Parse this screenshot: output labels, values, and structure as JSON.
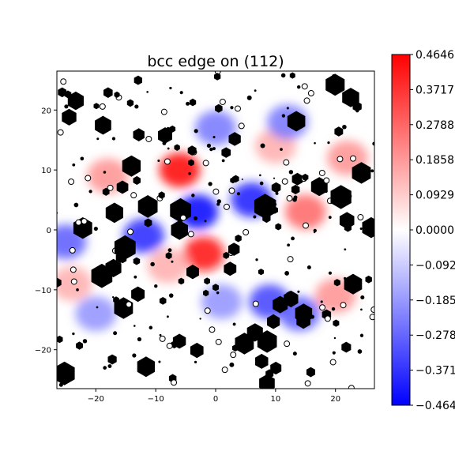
{
  "chart_data": {
    "type": "heatmap",
    "title": "bcc edge on (112)",
    "xlabel": "",
    "ylabel": "",
    "xlim": [
      -26.5,
      26.5
    ],
    "ylim": [
      -26.5,
      26.5
    ],
    "x_ticks": [
      -20,
      -10,
      0,
      10,
      20
    ],
    "x_tick_labels": [
      "−20",
      "−10",
      "0",
      "10",
      "20"
    ],
    "y_ticks": [
      20,
      10,
      0,
      -10,
      -20
    ],
    "y_tick_labels": [
      "20",
      "10",
      "0",
      "−10",
      "−20"
    ],
    "grid": false,
    "colormap": "bwr",
    "colors": {
      "min": "#0000ff",
      "mid": "#ffffff",
      "max": "#ff0000",
      "atoms": "#000000"
    },
    "colorbar": {
      "min": -0.4646,
      "max": 0.4646,
      "ticks": [
        0.4646,
        0.3717,
        0.2788,
        0.1858,
        0.0929,
        0.0,
        -0.0929,
        -0.1858,
        -0.2788,
        -0.3717,
        -0.4646
      ],
      "tick_labels": [
        "0.4646",
        "0.3717",
        "0.2788",
        "0.1858",
        "0.0929",
        "0.0000",
        "−0.0929",
        "−0.1858",
        "−0.2788",
        "−0.3717",
        "−0.4646"
      ]
    },
    "field_peaks": [
      {
        "x": -6,
        "y": 10,
        "value": 0.46
      },
      {
        "x": -2,
        "y": -4,
        "value": 0.44
      },
      {
        "x": 15,
        "y": 3,
        "value": 0.28
      },
      {
        "x": -18,
        "y": 9,
        "value": 0.2
      },
      {
        "x": 22,
        "y": 12,
        "value": 0.2
      },
      {
        "x": 10,
        "y": 14,
        "value": 0.15
      },
      {
        "x": -8,
        "y": -6,
        "value": 0.15
      },
      {
        "x": 20,
        "y": -11,
        "value": 0.2
      },
      {
        "x": -24,
        "y": -9,
        "value": 0.15
      },
      {
        "x": -3,
        "y": 3,
        "value": -0.46
      },
      {
        "x": -12,
        "y": -1,
        "value": -0.4
      },
      {
        "x": 6,
        "y": 5,
        "value": -0.42
      },
      {
        "x": 9,
        "y": -12,
        "value": -0.35
      },
      {
        "x": -25,
        "y": -2,
        "value": -0.3
      },
      {
        "x": 14,
        "y": -14,
        "value": -0.3
      },
      {
        "x": 0,
        "y": 17,
        "value": -0.25
      },
      {
        "x": 12,
        "y": 18,
        "value": -0.25
      },
      {
        "x": -20,
        "y": -14,
        "value": -0.2
      },
      {
        "x": 1,
        "y": -12,
        "value": -0.2
      }
    ]
  }
}
